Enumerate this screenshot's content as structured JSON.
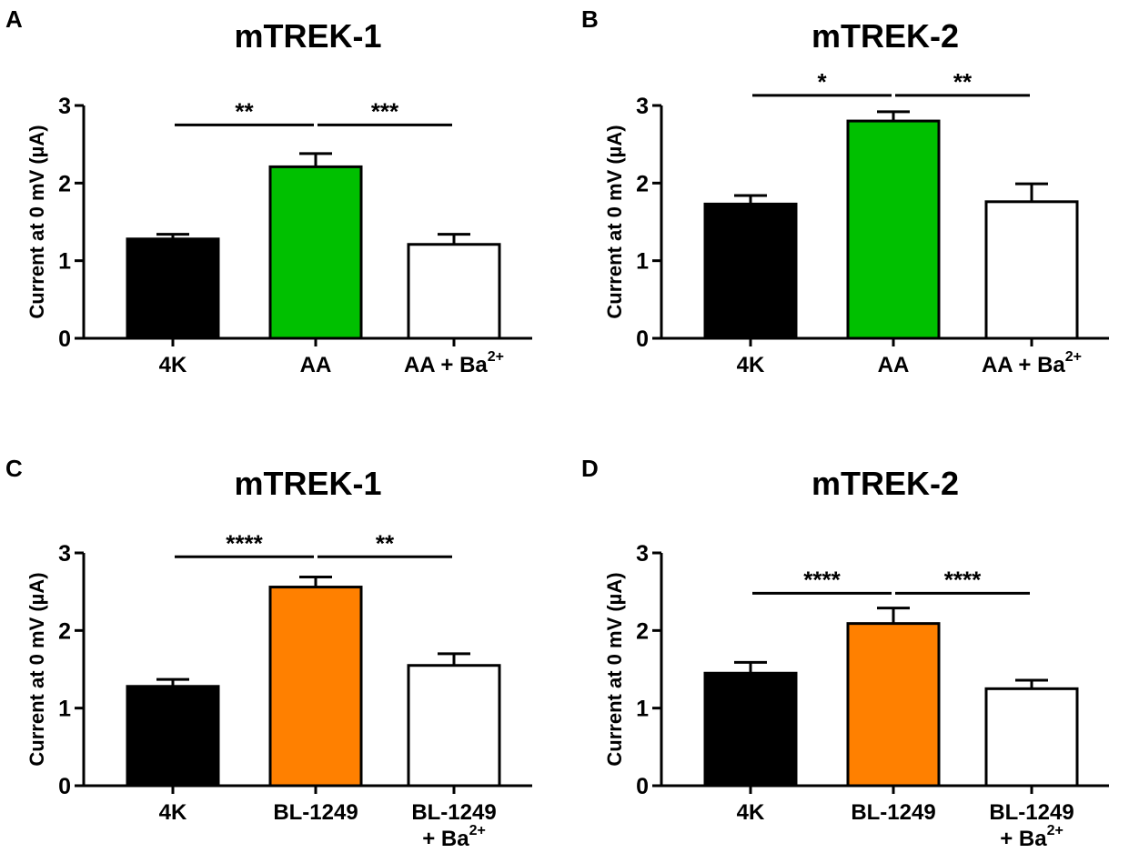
{
  "chart_data": [
    {
      "panel": "A",
      "type": "bar",
      "title": "mTREK-1",
      "ylabel": "Current at 0 mV (µA)",
      "ylim": [
        0,
        3
      ],
      "yticks": [
        "0",
        "1",
        "2",
        "3"
      ],
      "categories": [
        {
          "lines": [
            {
              "text": "4K"
            }
          ]
        },
        {
          "lines": [
            {
              "text": "AA"
            }
          ]
        },
        {
          "lines": [
            {
              "text": "AA + Ba",
              "sup": "2+"
            }
          ]
        }
      ],
      "values": [
        1.28,
        2.21,
        1.21
      ],
      "errors": [
        0.06,
        0.17,
        0.13
      ],
      "colors": [
        "#000000",
        "#00c000",
        "#ffffff"
      ],
      "significance": [
        {
          "from": 0,
          "to": 1,
          "label": "**",
          "y": 2.75
        },
        {
          "from": 1,
          "to": 2,
          "label": "***",
          "y": 2.75
        }
      ]
    },
    {
      "panel": "B",
      "type": "bar",
      "title": "mTREK-2",
      "ylabel": "Current at 0 mV (µA)",
      "ylim": [
        0,
        3
      ],
      "yticks": [
        "0",
        "1",
        "2",
        "3"
      ],
      "categories": [
        {
          "lines": [
            {
              "text": "4K"
            }
          ]
        },
        {
          "lines": [
            {
              "text": "AA"
            }
          ]
        },
        {
          "lines": [
            {
              "text": "AA + Ba",
              "sup": "2+"
            }
          ]
        }
      ],
      "values": [
        1.73,
        2.8,
        1.76
      ],
      "errors": [
        0.11,
        0.12,
        0.23
      ],
      "colors": [
        "#000000",
        "#00c000",
        "#ffffff"
      ],
      "significance": [
        {
          "from": 0,
          "to": 1,
          "label": "*",
          "y": 3.13
        },
        {
          "from": 1,
          "to": 2,
          "label": "**",
          "y": 3.13
        }
      ]
    },
    {
      "panel": "C",
      "type": "bar",
      "title": "mTREK-1",
      "ylabel": "Current at 0 mV (µA)",
      "ylim": [
        0,
        3
      ],
      "yticks": [
        "0",
        "1",
        "2",
        "3"
      ],
      "categories": [
        {
          "lines": [
            {
              "text": "4K"
            }
          ]
        },
        {
          "lines": [
            {
              "text": "BL-1249"
            }
          ]
        },
        {
          "lines": [
            {
              "text": "BL-1249"
            },
            {
              "text": "+ Ba",
              "sup": "2+"
            }
          ]
        }
      ],
      "values": [
        1.28,
        2.56,
        1.55
      ],
      "errors": [
        0.09,
        0.13,
        0.15
      ],
      "colors": [
        "#000000",
        "#ff8000",
        "#ffffff"
      ],
      "significance": [
        {
          "from": 0,
          "to": 1,
          "label": "****",
          "y": 2.95
        },
        {
          "from": 1,
          "to": 2,
          "label": "**",
          "y": 2.95
        }
      ]
    },
    {
      "panel": "D",
      "type": "bar",
      "title": "mTREK-2",
      "ylabel": "Current at 0 mV (µA)",
      "ylim": [
        0,
        3
      ],
      "yticks": [
        "0",
        "1",
        "2",
        "3"
      ],
      "categories": [
        {
          "lines": [
            {
              "text": "4K"
            }
          ]
        },
        {
          "lines": [
            {
              "text": "BL-1249"
            }
          ]
        },
        {
          "lines": [
            {
              "text": "BL-1249"
            },
            {
              "text": "+ Ba",
              "sup": "2+"
            }
          ]
        }
      ],
      "values": [
        1.45,
        2.09,
        1.25
      ],
      "errors": [
        0.14,
        0.2,
        0.11
      ],
      "colors": [
        "#000000",
        "#ff8000",
        "#ffffff"
      ],
      "significance": [
        {
          "from": 0,
          "to": 1,
          "label": "****",
          "y": 2.48
        },
        {
          "from": 1,
          "to": 2,
          "label": "****",
          "y": 2.48
        }
      ]
    }
  ]
}
